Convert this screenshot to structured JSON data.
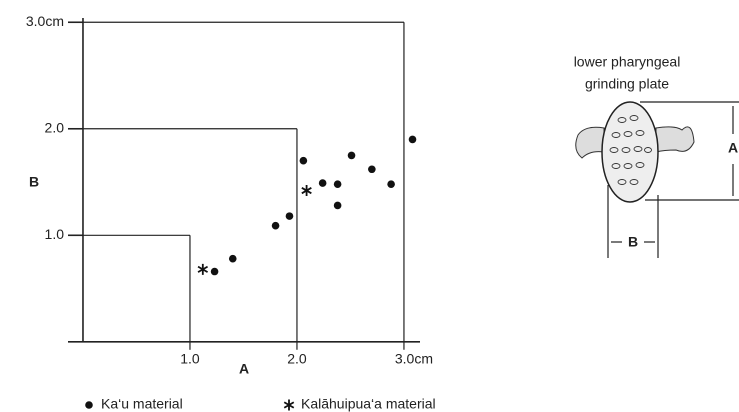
{
  "chart_data": {
    "type": "scatter",
    "x_label": "A",
    "y_label": "B",
    "xlim": [
      -0.14,
      3.15
    ],
    "ylim": [
      -0.03,
      3.04
    ],
    "xticks": [
      {
        "value": 1,
        "label": "1.0"
      },
      {
        "value": 2,
        "label": "2.0"
      },
      {
        "value": 3,
        "label": "3.0cm"
      }
    ],
    "yticks": [
      {
        "value": 1,
        "label": "1.0"
      },
      {
        "value": 2,
        "label": "2.0"
      },
      {
        "value": 3,
        "label": "3.0cm"
      }
    ],
    "series": [
      {
        "name": "Ka‘u material",
        "marker": "dot",
        "color": "#111111",
        "x": [
          1.23,
          1.4,
          1.8,
          1.93,
          2.06,
          2.24,
          2.38,
          2.38,
          2.51,
          2.7,
          2.88,
          3.08
        ],
        "values": [
          0.66,
          0.78,
          1.09,
          1.18,
          1.7,
          1.49,
          1.28,
          1.48,
          1.75,
          1.62,
          1.48,
          1.9
        ]
      },
      {
        "name": "Kalāhuipua‘a material",
        "marker": "asterisk",
        "color": "#111111",
        "x": [
          1.12,
          2.09
        ],
        "values": [
          0.68,
          1.42
        ]
      }
    ],
    "illustration": {
      "caption": [
        "lower pharyngeal",
        "grinding plate"
      ],
      "dimension_a": "A",
      "dimension_b": "B"
    }
  }
}
